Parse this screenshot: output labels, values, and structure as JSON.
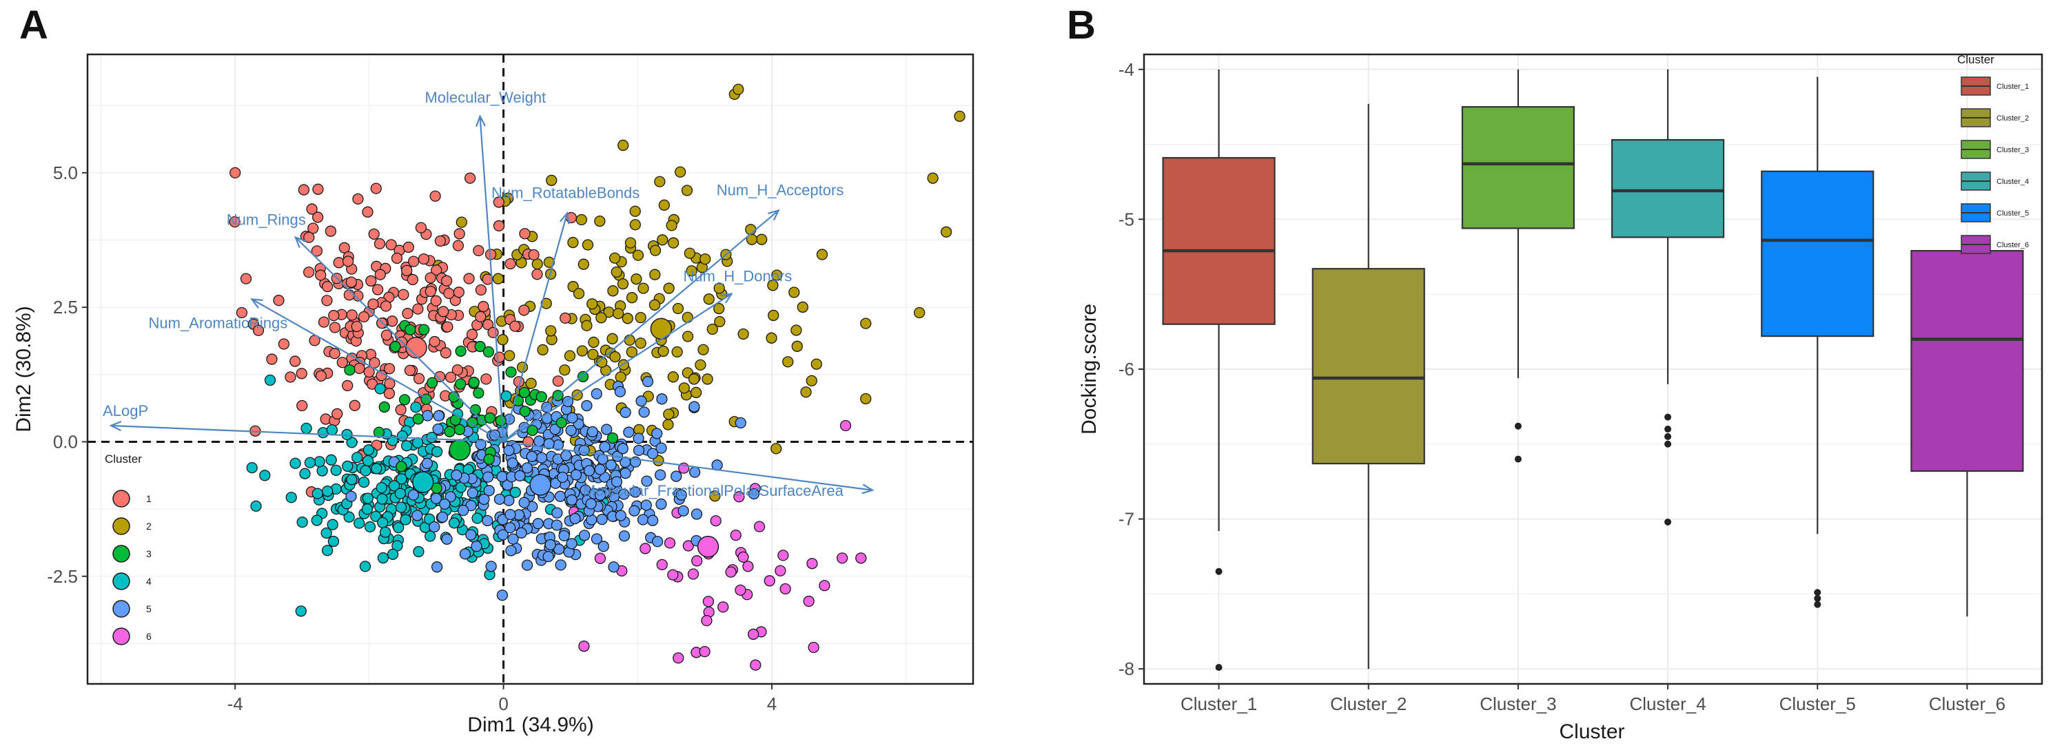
{
  "chart_data": [
    {
      "type": "scatter",
      "panel_label": "A",
      "xlabel": "Dim1 (34.9%)",
      "ylabel": "Dim2 (30.8%)",
      "xlim": [
        -6.2,
        7.0
      ],
      "ylim": [
        -4.5,
        7.2
      ],
      "x_ticks": [
        -4,
        0,
        4
      ],
      "x_tick_labels": [
        "-4",
        "0",
        "4"
      ],
      "y_ticks": [
        -2.5,
        0.0,
        2.5,
        5.0
      ],
      "y_tick_labels": [
        "-2.5",
        "0.0",
        "2.5",
        "5.0"
      ],
      "grid": true,
      "reference_lines": {
        "x": 0,
        "y": 0,
        "style": "dashed"
      },
      "legend": {
        "title": "Cluster",
        "placement": "left",
        "entries": [
          {
            "label": "1",
            "color": "#F8766D"
          },
          {
            "label": "2",
            "color": "#B79F00"
          },
          {
            "label": "3",
            "color": "#00BA38"
          },
          {
            "label": "4",
            "color": "#00BFC4"
          },
          {
            "label": "5",
            "color": "#619CFF"
          },
          {
            "label": "6",
            "color": "#F564E3"
          }
        ]
      },
      "clusters": [
        {
          "name": "1",
          "color": "#F8766D",
          "center": [
            -1.6,
            2.2
          ],
          "spread": [
            0.9,
            1.1
          ],
          "count": 230,
          "seed": 11
        },
        {
          "name": "2",
          "color": "#B79F00",
          "center": [
            1.8,
            2.2
          ],
          "spread": [
            1.3,
            1.3
          ],
          "count": 170,
          "seed": 23
        },
        {
          "name": "3",
          "color": "#00BA38",
          "center": [
            -0.4,
            0.9
          ],
          "spread": [
            0.7,
            0.7
          ],
          "count": 45,
          "seed": 37
        },
        {
          "name": "4",
          "color": "#00BFC4",
          "center": [
            -1.3,
            -0.8
          ],
          "spread": [
            0.85,
            0.7
          ],
          "count": 260,
          "seed": 41
        },
        {
          "name": "5",
          "color": "#619CFF",
          "center": [
            0.8,
            -0.7
          ],
          "spread": [
            0.9,
            0.75
          ],
          "count": 320,
          "seed": 53
        },
        {
          "name": "6",
          "color": "#F564E3",
          "center": [
            3.2,
            -2.4
          ],
          "spread": [
            0.8,
            0.75
          ],
          "count": 45,
          "seed": 67
        }
      ],
      "extra_points": [
        {
          "cluster": "1",
          "x": -4.0,
          "y": 5.0
        },
        {
          "cluster": "1",
          "x": -3.9,
          "y": 2.4
        },
        {
          "cluster": "1",
          "x": -3.7,
          "y": 0.2
        },
        {
          "cluster": "1",
          "x": -2.9,
          "y": 3.8
        },
        {
          "cluster": "2",
          "x": 3.5,
          "y": 6.55
        },
        {
          "cluster": "2",
          "x": 6.8,
          "y": 6.05
        },
        {
          "cluster": "2",
          "x": 6.4,
          "y": 4.9
        },
        {
          "cluster": "2",
          "x": 6.6,
          "y": 3.9
        },
        {
          "cluster": "2",
          "x": 6.2,
          "y": 2.4
        },
        {
          "cluster": "2",
          "x": 5.4,
          "y": 2.2
        },
        {
          "cluster": "2",
          "x": 5.4,
          "y": 0.8
        },
        {
          "cluster": "6",
          "x": 3.0,
          "y": -3.9
        },
        {
          "cluster": "6",
          "x": 1.2,
          "y": -3.8
        },
        {
          "cluster": "6",
          "x": 5.1,
          "y": 0.3
        }
      ],
      "centroids": [
        {
          "cluster": "1",
          "x": -1.3,
          "y": 1.75
        },
        {
          "cluster": "2",
          "x": 2.35,
          "y": 2.1
        },
        {
          "cluster": "3",
          "x": -0.65,
          "y": -0.15
        },
        {
          "cluster": "4",
          "x": -1.2,
          "y": -0.75
        },
        {
          "cluster": "5",
          "x": 0.55,
          "y": -0.8
        },
        {
          "cluster": "6",
          "x": 3.05,
          "y": -1.95
        }
      ],
      "vectors": [
        {
          "label": "Molecular_Weight",
          "x": -0.35,
          "y": 6.05
        },
        {
          "label": "Num_RotatableBonds",
          "x": 0.95,
          "y": 4.25
        },
        {
          "label": "Num_H_Acceptors",
          "x": 4.1,
          "y": 4.3
        },
        {
          "label": "Num_Rings",
          "x": -3.1,
          "y": 3.8
        },
        {
          "label": "Num_H_Donors",
          "x": 3.4,
          "y": 2.75
        },
        {
          "label": "Num_AromaticRings",
          "x": -3.75,
          "y": 2.65
        },
        {
          "label": "ALogP",
          "x": -5.85,
          "y": 0.3
        },
        {
          "label": "Molecular_FractionalPolarSurfaceArea",
          "x": 5.5,
          "y": -0.9
        }
      ]
    },
    {
      "type": "boxplot",
      "panel_label": "B",
      "xlabel": "Cluster",
      "ylabel": "Docking.score",
      "ylim": [
        -8.1,
        -3.9
      ],
      "y_ticks": [
        -8,
        -7,
        -6,
        -5,
        -4
      ],
      "y_tick_labels": [
        "-8",
        "-7",
        "-6",
        "-5",
        "-4"
      ],
      "grid": true,
      "categories": [
        "Cluster_1",
        "Cluster_2",
        "Cluster_3",
        "Cluster_4",
        "Cluster_5",
        "Cluster_6"
      ],
      "legend": {
        "title": "Cluster",
        "placement": "top-right",
        "entries": [
          "Cluster_1",
          "Cluster_2",
          "Cluster_3",
          "Cluster_4",
          "Cluster_5",
          "Cluster_6"
        ]
      },
      "series": [
        {
          "name": "Cluster_1",
          "color": "#C1584A",
          "whisker_low": -7.08,
          "q1": -5.7,
          "median": -5.21,
          "q3": -4.59,
          "whisker_high": -4.0,
          "outliers": [
            -7.35,
            -7.99
          ]
        },
        {
          "name": "Cluster_2",
          "color": "#9A9537",
          "whisker_low": -8.0,
          "q1": -6.63,
          "median": -6.06,
          "q3": -5.33,
          "whisker_high": -4.23,
          "outliers": []
        },
        {
          "name": "Cluster_3",
          "color": "#68AD3D",
          "whisker_low": -6.06,
          "q1": -5.06,
          "median": -4.63,
          "q3": -4.25,
          "whisker_high": -4.0,
          "outliers": [
            -6.38,
            -6.6
          ]
        },
        {
          "name": "Cluster_4",
          "color": "#3BAAA8",
          "whisker_low": -6.1,
          "q1": -5.12,
          "median": -4.81,
          "q3": -4.47,
          "whisker_high": -4.0,
          "outliers": [
            -6.32,
            -6.4,
            -6.45,
            -6.5,
            -7.02
          ]
        },
        {
          "name": "Cluster_5",
          "color": "#0D85FA",
          "whisker_low": -7.1,
          "q1": -5.78,
          "median": -5.14,
          "q3": -4.68,
          "whisker_high": -4.05,
          "outliers": [
            -7.49,
            -7.53,
            -7.57
          ]
        },
        {
          "name": "Cluster_6",
          "color": "#A73DB0",
          "whisker_low": -7.65,
          "q1": -6.68,
          "median": -5.8,
          "q3": -5.21,
          "whisker_high": -5.21,
          "outliers": []
        }
      ]
    }
  ]
}
